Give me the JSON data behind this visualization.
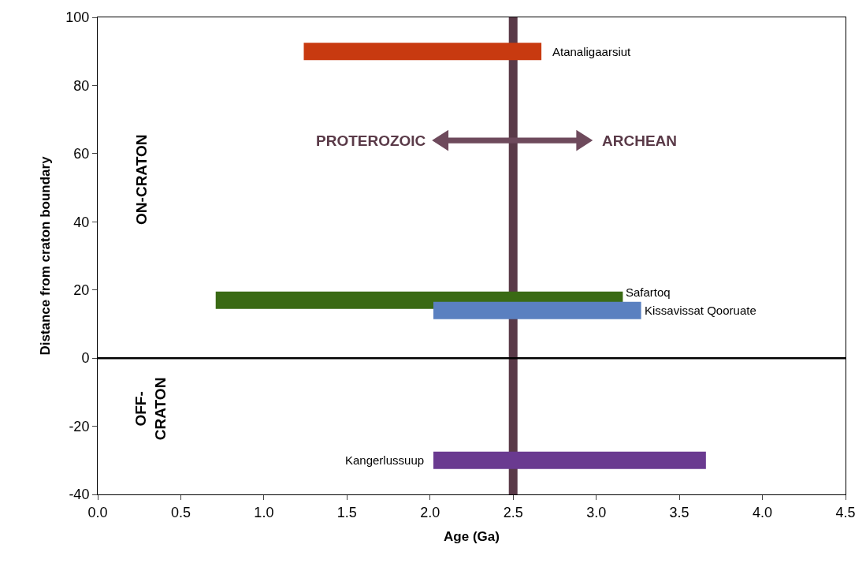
{
  "chart_data": {
    "type": "line",
    "xlabel": "Age (Ga)",
    "ylabel": "Distance from craton boundary",
    "series": [
      {
        "name": "Atanaligaarsiut",
        "color": "#c83a10",
        "x": [
          1.24,
          2.67
        ],
        "values": [
          90,
          90
        ]
      },
      {
        "name": "Safartoq",
        "color": "#3a6a14",
        "x": [
          0.71,
          3.16
        ],
        "values": [
          17,
          17
        ]
      },
      {
        "name": "Kissavissat Qooruate",
        "color": "#5a80c0",
        "x": [
          2.02,
          3.27
        ],
        "values": [
          14,
          14
        ]
      },
      {
        "name": "Kangerlussuup",
        "color": "#6a3a90",
        "x": [
          2.02,
          3.66
        ],
        "values": [
          -30,
          -30
        ]
      }
    ],
    "xlim": [
      0,
      4.5
    ],
    "xticks": [
      {
        "value": 0,
        "label": "0.0"
      },
      0.5,
      {
        "value": 1,
        "label": "1.0"
      },
      1.5,
      {
        "value": 2,
        "label": "2.0"
      },
      2.5,
      {
        "value": 3,
        "label": "3.0"
      },
      3.5,
      {
        "value": 4,
        "label": "4.0"
      },
      4.5
    ],
    "ylim": [
      -40,
      100
    ],
    "yticks": [
      -40,
      -20,
      0,
      20,
      40,
      60,
      80,
      100
    ],
    "legend": false,
    "marker": "none",
    "line_style": "solid",
    "ref_lines": [
      {
        "axis": "x",
        "value": 2.5,
        "color": "#5a3a48"
      },
      {
        "axis": "y",
        "value": 0,
        "color": "#000000"
      }
    ],
    "annotations": [
      "PROTEROZOIC",
      "ARCHEAN",
      "ON-CRATON",
      "OFF-\nCRATON"
    ]
  }
}
